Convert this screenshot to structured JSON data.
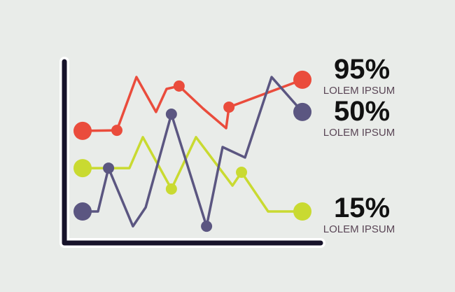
{
  "chart_data": {
    "type": "line",
    "xlim": [
      0,
      100
    ],
    "ylim": [
      0,
      100
    ],
    "series": [
      {
        "color": "#ea4c3c",
        "x": [
          0,
          15.6,
          24.5,
          33.4,
          38.2,
          43.9,
          54.8,
          65.3,
          66.6,
          100
        ],
        "values": [
          62.3,
          62.6,
          92.2,
          72.8,
          85.6,
          87.2,
          74.7,
          63.8,
          75.5,
          90.7
        ],
        "marker_points": [
          1,
          5,
          8
        ]
      },
      {
        "color": "#c9da31",
        "x": [
          0,
          21.3,
          27.4,
          40.4,
          51.6,
          68.2,
          72.3,
          84.4,
          100
        ],
        "values": [
          41.6,
          41.6,
          58.8,
          30.0,
          58.8,
          31.9,
          39.3,
          17.5,
          17.5
        ],
        "marker_points": [
          3,
          6
        ]
      },
      {
        "color": "#5b5681",
        "x": [
          0,
          7.0,
          11.8,
          22.9,
          28.7,
          40.4,
          56.4,
          63.7,
          73.9,
          86.0,
          100
        ],
        "values": [
          17.5,
          17.5,
          41.6,
          9.3,
          19.8,
          71.6,
          9.3,
          53.3,
          47.5,
          92.2,
          72.8
        ],
        "marker_points": [
          2,
          5,
          6
        ]
      }
    ],
    "annotations": [
      {
        "value": "95%",
        "text": "LOLEM IPSUM"
      },
      {
        "value": "50%",
        "text": "LOLEM IPSUM"
      },
      {
        "value": "15%",
        "text": "LOLEM IPSUM"
      }
    ]
  }
}
